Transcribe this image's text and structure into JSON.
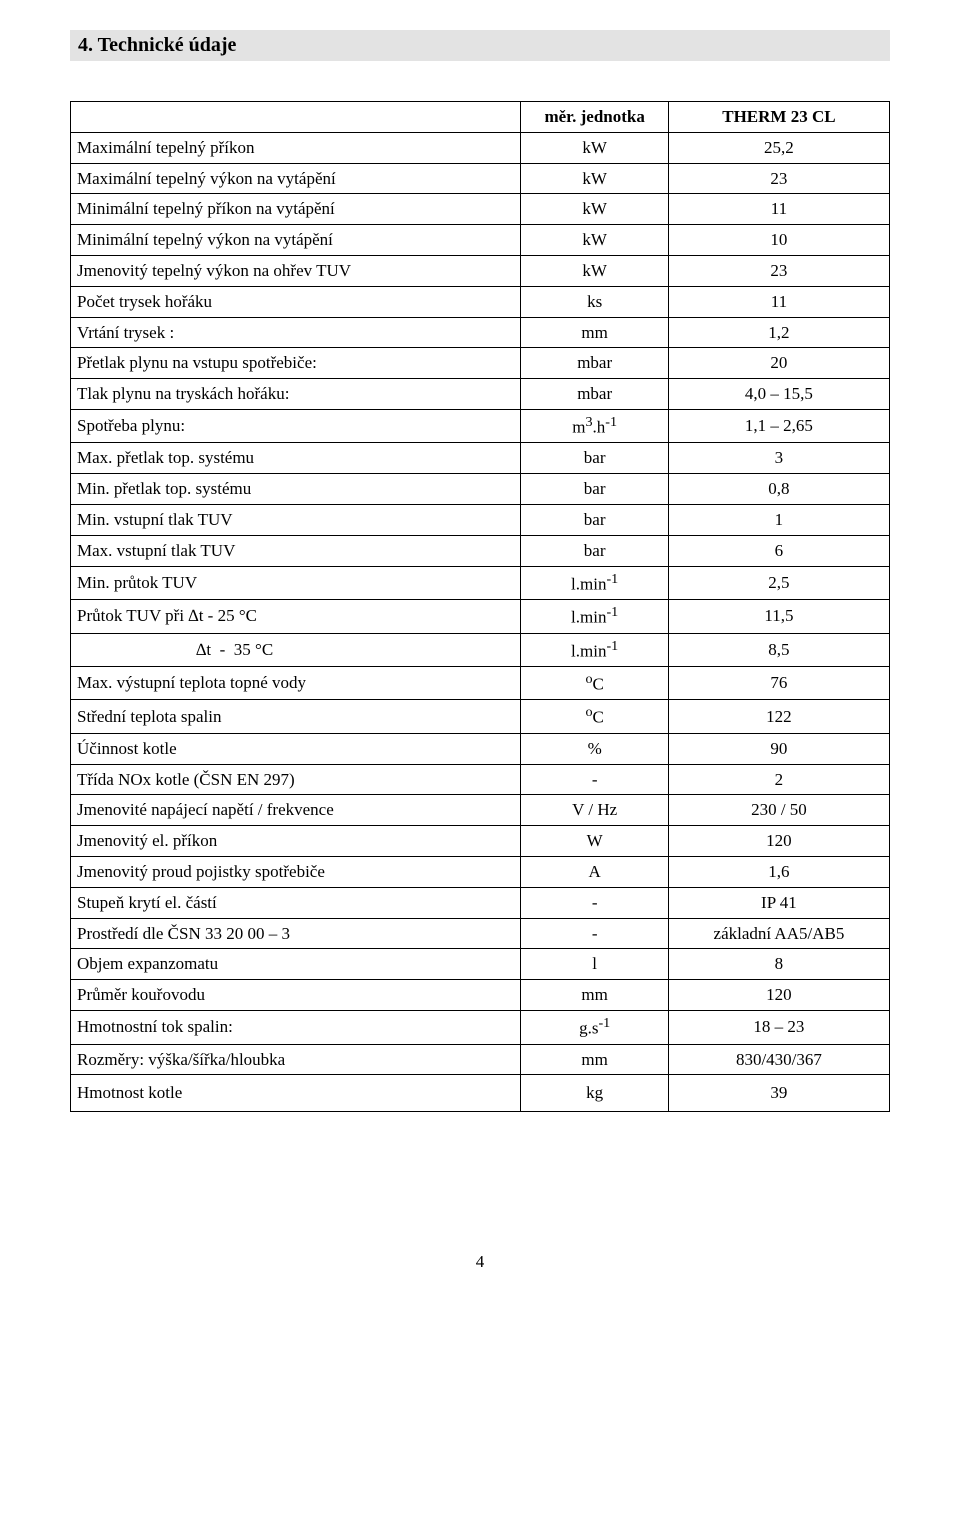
{
  "section_title": "4. Technické údaje",
  "table": {
    "header": {
      "unit_col": "měr. jednotka",
      "val_col": "THERM 23 CL"
    },
    "rows": [
      {
        "label": "Maximální tepelný příkon",
        "unit": "kW",
        "val": "25,2"
      },
      {
        "label": "Maximální tepelný výkon na vytápění",
        "unit": "kW",
        "val": "23"
      },
      {
        "label": "Minimální tepelný příkon na vytápění",
        "unit": "kW",
        "val": "11"
      },
      {
        "label": "Minimální tepelný výkon na vytápění",
        "unit": "kW",
        "val": "10"
      },
      {
        "label": "Jmenovitý tepelný výkon na ohřev TUV",
        "unit": "kW",
        "val": "23"
      },
      {
        "label": "Počet trysek hořáku",
        "unit": "ks",
        "val": "11"
      },
      {
        "label": "Vrtání trysek :",
        "unit": "mm",
        "val": "1,2"
      },
      {
        "label": "Přetlak plynu na vstupu spotřebiče:",
        "unit": "mbar",
        "val": "20"
      },
      {
        "label": "Tlak plynu na tryskách hořáku:",
        "unit": "mbar",
        "val": "4,0 – 15,5"
      },
      {
        "label": "Spotřeba plynu:",
        "unit_html": "m<sup>3</sup>.h<sup>-1</sup>",
        "val": "1,1 – 2,65"
      },
      {
        "label": "Max. přetlak top. systému",
        "unit": "bar",
        "val": "3"
      },
      {
        "label": "Min. přetlak top. systému",
        "unit": "bar",
        "val": "0,8"
      },
      {
        "label": "Min. vstupní tlak TUV",
        "unit": "bar",
        "val": "1"
      },
      {
        "label": "Max. vstupní tlak TUV",
        "unit": "bar",
        "val": "6"
      },
      {
        "label": "Min. průtok TUV",
        "unit_html": "l.min<sup>-1</sup>",
        "val": "2,5"
      },
      {
        "label": "Průtok TUV při   ∆t  -  25 °C",
        "unit_html": "l.min<sup>-1</sup>",
        "val": "11,5"
      },
      {
        "label_indent": "                            ∆t  -  35 °C",
        "unit_html": "l.min<sup>-1</sup>",
        "val": "8,5"
      },
      {
        "label": "Max. výstupní teplota topné vody",
        "unit_html": "<sup>o</sup>C",
        "val": "76"
      },
      {
        "label": "Střední teplota spalin",
        "unit_html": "<sup>o</sup>C",
        "val": "122"
      },
      {
        "label": "Účinnost kotle",
        "unit": "%",
        "val": "90"
      },
      {
        "label": "Třída NOx kotle (ČSN EN 297)",
        "unit": "-",
        "val": "2"
      },
      {
        "label": "Jmenovité napájecí napětí / frekvence",
        "unit": "V / Hz",
        "val": "230 / 50"
      },
      {
        "label": "Jmenovitý el. příkon",
        "unit": "W",
        "val": "120"
      },
      {
        "label": "Jmenovitý proud pojistky spotřebiče",
        "unit": "A",
        "val": "1,6"
      },
      {
        "label": "Stupeň krytí el. částí",
        "unit": "-",
        "val": "IP 41"
      },
      {
        "label": "Prostředí dle ČSN 33 20 00 – 3",
        "unit": "-",
        "val": "základní AA5/AB5"
      },
      {
        "label": "Objem expanzomatu",
        "unit": "l",
        "val": "8"
      },
      {
        "label": "Průměr kouřovodu",
        "unit": "mm",
        "val": "120"
      },
      {
        "label": "Hmotnostní tok spalin:",
        "unit_html": "g.s<sup>-1</sup>",
        "val": "18 – 23"
      },
      {
        "label": "Rozměry: výška/šířka/hloubka",
        "unit": "mm",
        "val": "830/430/367"
      },
      {
        "label": "Hmotnost kotle",
        "unit": "kg",
        "val": "39",
        "last": true
      }
    ]
  },
  "page_number": "4",
  "colors": {
    "header_bg": "#e3e3e3",
    "border": "#000000",
    "text": "#000000",
    "page_bg": "#ffffff"
  },
  "fonts": {
    "heading_size_pt": 15,
    "body_size_pt": 13,
    "family": "Times New Roman"
  }
}
